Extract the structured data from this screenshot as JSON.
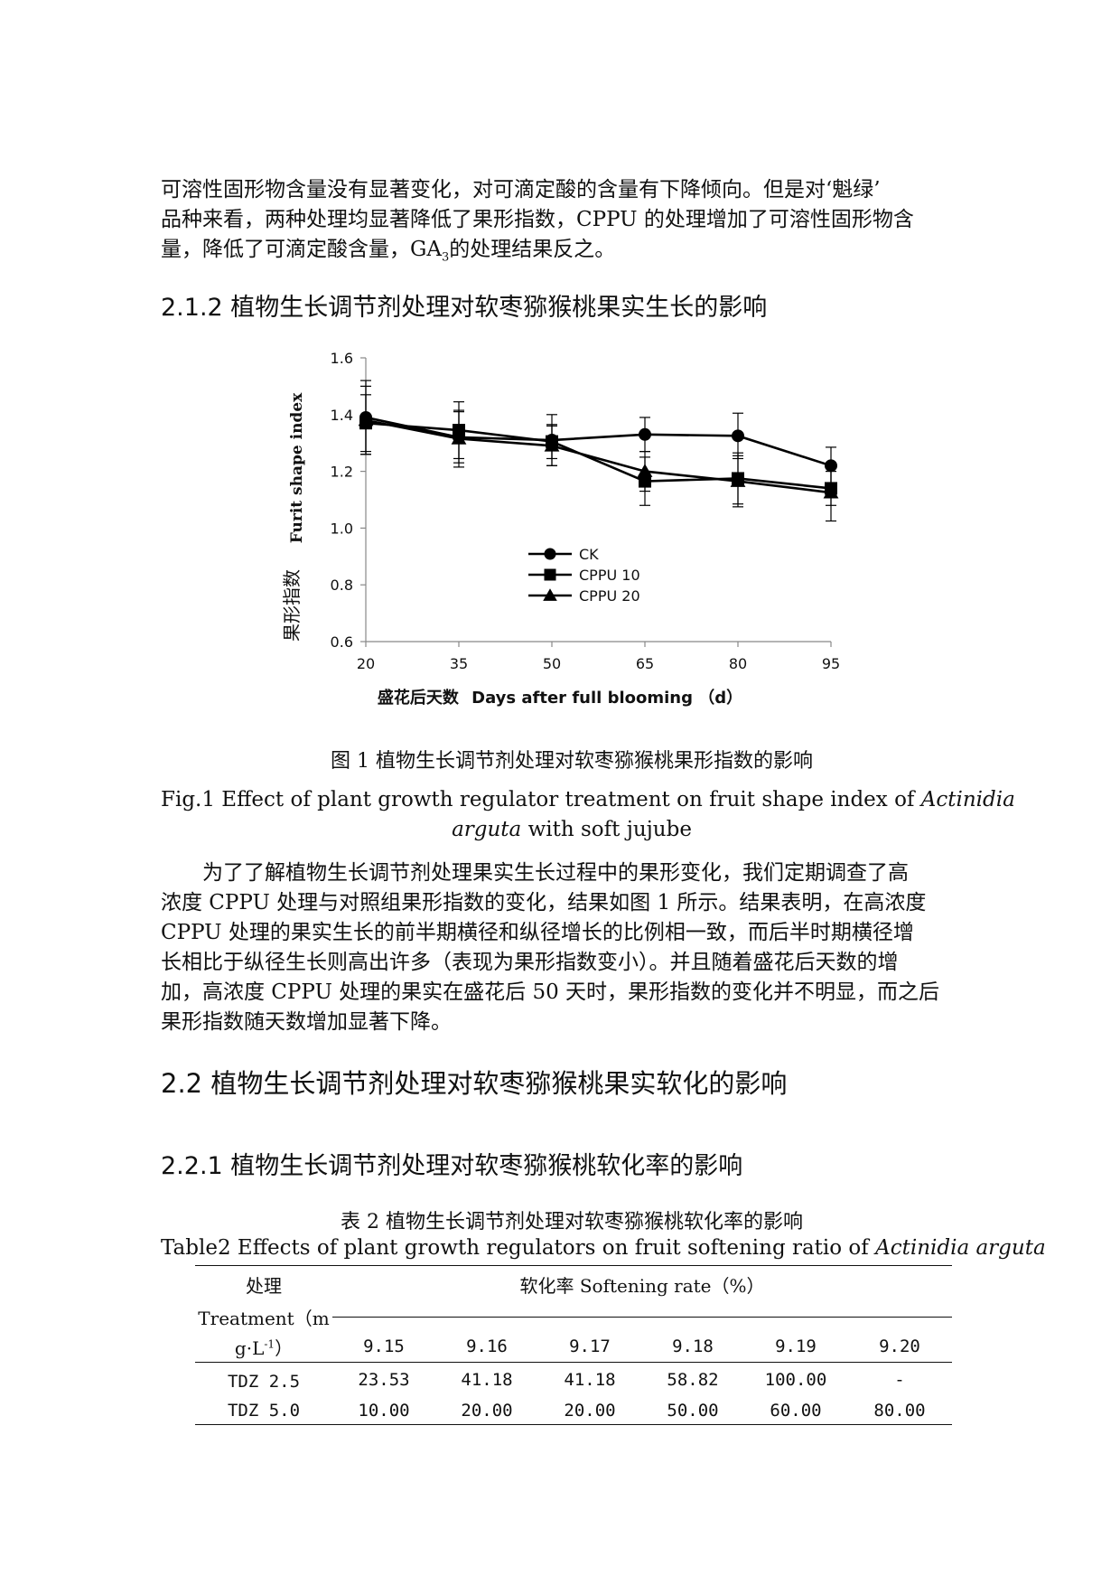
{
  "intro_paragraph": {
    "line1": "可溶性固形物含量没有显著变化，对可滴定酸的含量有下降倾向。但是对‘魁绿’",
    "line2": "品种来看，两种处理均显著降低了果形指数，CPPU 的处理增加了可溶性固形物含",
    "line3_a": "量，降低了可滴定酸含量，GA",
    "line3_sub": "3",
    "line3_b": "的处理结果反之。"
  },
  "heading_212": "2.1.2 植物生长调节剂处理对软枣猕猴桃果实生长的影响",
  "chart_data": {
    "type": "line",
    "x": [
      20,
      35,
      50,
      65,
      80,
      95
    ],
    "xlabel_cn": "盛花后天数",
    "xlabel_en": "Days after full blooming （d）",
    "ylabel_cn": "果形指数",
    "ylabel_en": "Furit shape index",
    "ylim": [
      0.6,
      1.6
    ],
    "yticks": [
      "0.6",
      "0.8",
      "1.0",
      "1.2",
      "1.4",
      "1.6"
    ],
    "xticks": [
      "20",
      "35",
      "50",
      "65",
      "80",
      "95"
    ],
    "legend_position": "center",
    "series": [
      {
        "name": "CK",
        "marker": "circle",
        "values": [
          1.39,
          1.32,
          1.31,
          1.33,
          1.325,
          1.22
        ],
        "errors": [
          0.13,
          0.09,
          0.09,
          0.06,
          0.08,
          0.065
        ]
      },
      {
        "name": "CPPU 10",
        "marker": "square",
        "values": [
          1.37,
          1.345,
          1.305,
          1.165,
          1.175,
          1.14
        ],
        "errors": [
          0.1,
          0.1,
          0.06,
          0.085,
          0.09,
          0.06
        ]
      },
      {
        "name": "CPPU 20",
        "marker": "triangle",
        "values": [
          1.38,
          1.315,
          1.29,
          1.2,
          1.165,
          1.125
        ],
        "errors": [
          0.12,
          0.1,
          0.07,
          0.07,
          0.09,
          0.1
        ]
      }
    ]
  },
  "figure_caption": {
    "cn": "图 1 植物生长调节剂处理对软枣猕猴桃果形指数的影响",
    "en_line1_a": "Fig.1 Effect of plant growth regulator treatment on fruit shape index of ",
    "en_line1_italic": "Actinidia",
    "en_line2_italic": "arguta",
    "en_line2_b": " with soft jujube"
  },
  "results_paragraph": {
    "line1": "为了了解植物生长调节剂处理果实生长过程中的果形变化，我们定期调查了高",
    "line2": "浓度 CPPU 处理与对照组果形指数的变化，结果如图 1 所示。结果表明，在高浓度",
    "line3": "CPPU 处理的果实生长的前半期横径和纵径增长的比例相一致，而后半时期横径增",
    "line4": "长相比于纵径生长则高出许多（表现为果形指数变小）。并且随着盛花后天数的增",
    "line5": "加，高浓度 CPPU 处理的果实在盛花后 50 天时，果形指数的变化并不明显，而之后",
    "line6": "果形指数随天数增加显著下降。"
  },
  "heading_22": "2.2 植物生长调节剂处理对软枣猕猴桃果实软化的影响",
  "heading_221": "2.2.1 植物生长调节剂处理对软枣猕猴桃软化率的影响",
  "table_caption": {
    "cn": "表 2 植物生长调节剂处理对软枣猕猴桃软化率的影响",
    "en_a": "Table2 Effects of plant growth regulators on fruit softening ratio of ",
    "en_italic": "Actinidia arguta"
  },
  "table": {
    "treatment_cn": "处理",
    "treatment_en_a": "Treatment（m",
    "treatment_en_b": "g·L",
    "treatment_en_sup": "-1",
    "treatment_en_c": "）",
    "softening_header": "软化率 Softening rate（%）",
    "dates": [
      "9.15",
      "9.16",
      "9.17",
      "9.18",
      "9.19",
      "9.20"
    ],
    "rows": [
      {
        "label": "TDZ 2.5",
        "values": [
          "23.53",
          "41.18",
          "41.18",
          "58.82",
          "100.00",
          "-"
        ]
      },
      {
        "label": "TDZ 5.0",
        "values": [
          "10.00",
          "20.00",
          "20.00",
          "50.00",
          "60.00",
          "80.00"
        ]
      }
    ]
  }
}
